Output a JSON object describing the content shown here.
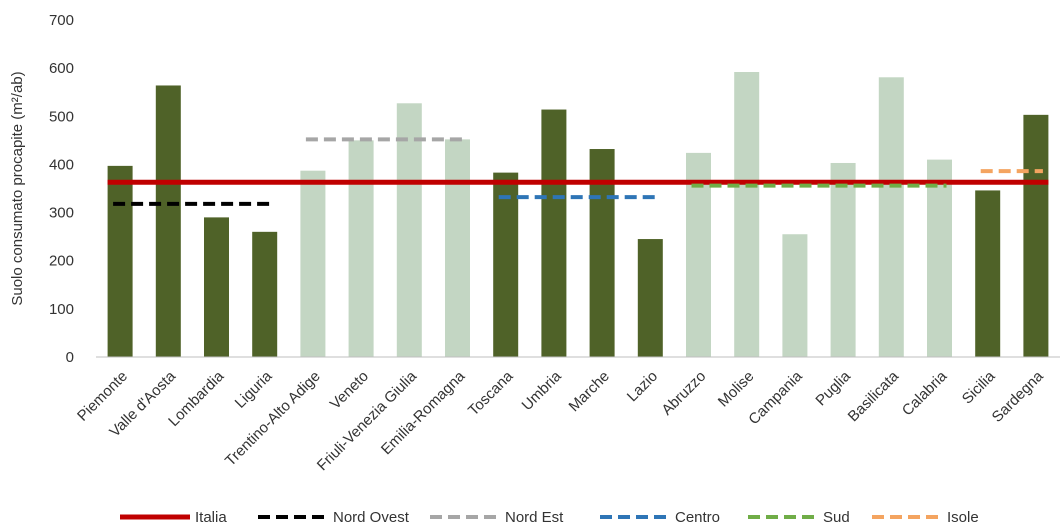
{
  "chart_data": {
    "type": "bar",
    "ylabel": "Suolo consumato procapite (m²/ab)",
    "ylim": [
      0,
      700
    ],
    "yticks": [
      0,
      100,
      200,
      300,
      400,
      500,
      600,
      700
    ],
    "grid": false,
    "legend_position": "bottom",
    "categories": [
      "Piemonte",
      "Valle d'Aosta",
      "Lombardia",
      "Liguria",
      "Trentino-Alto Adige",
      "Veneto",
      "Friuli-Venezia Giulia",
      "Emilia-Romagna",
      "Toscana",
      "Umbria",
      "Marche",
      "Lazio",
      "Abruzzo",
      "Molise",
      "Campania",
      "Puglia",
      "Basilicata",
      "Calabria",
      "Sicilia",
      "Sardegna"
    ],
    "values": [
      397,
      564,
      290,
      260,
      387,
      450,
      527,
      452,
      383,
      514,
      432,
      245,
      424,
      592,
      255,
      403,
      581,
      410,
      346,
      503
    ],
    "bar_colors": [
      "#4f6228",
      "#4f6228",
      "#4f6228",
      "#4f6228",
      "#c3d6c3",
      "#c3d6c3",
      "#c3d6c3",
      "#c3d6c3",
      "#4f6228",
      "#4f6228",
      "#4f6228",
      "#4f6228",
      "#c3d6c3",
      "#c3d6c3",
      "#c3d6c3",
      "#c3d6c3",
      "#c3d6c3",
      "#c3d6c3",
      "#4f6228",
      "#4f6228"
    ],
    "reference_lines": [
      {
        "name": "Italia",
        "value": 363,
        "start_index": 0,
        "end_index": 19,
        "color": "#c00000",
        "style": "solid"
      },
      {
        "name": "Nord Ovest",
        "value": 318,
        "start_index": 0,
        "end_index": 3,
        "color": "#000000",
        "style": "dashed"
      },
      {
        "name": "Nord Est",
        "value": 452,
        "start_index": 4,
        "end_index": 7,
        "color": "#a6a6a6",
        "style": "dashed"
      },
      {
        "name": "Centro",
        "value": 332,
        "start_index": 8,
        "end_index": 11,
        "color": "#2e75b6",
        "style": "dashed"
      },
      {
        "name": "Sud",
        "value": 356,
        "start_index": 12,
        "end_index": 17,
        "color": "#70ad47",
        "style": "dashed"
      },
      {
        "name": "Isole",
        "value": 386,
        "start_index": 18,
        "end_index": 19,
        "color": "#f4a460",
        "style": "dashed"
      }
    ]
  }
}
